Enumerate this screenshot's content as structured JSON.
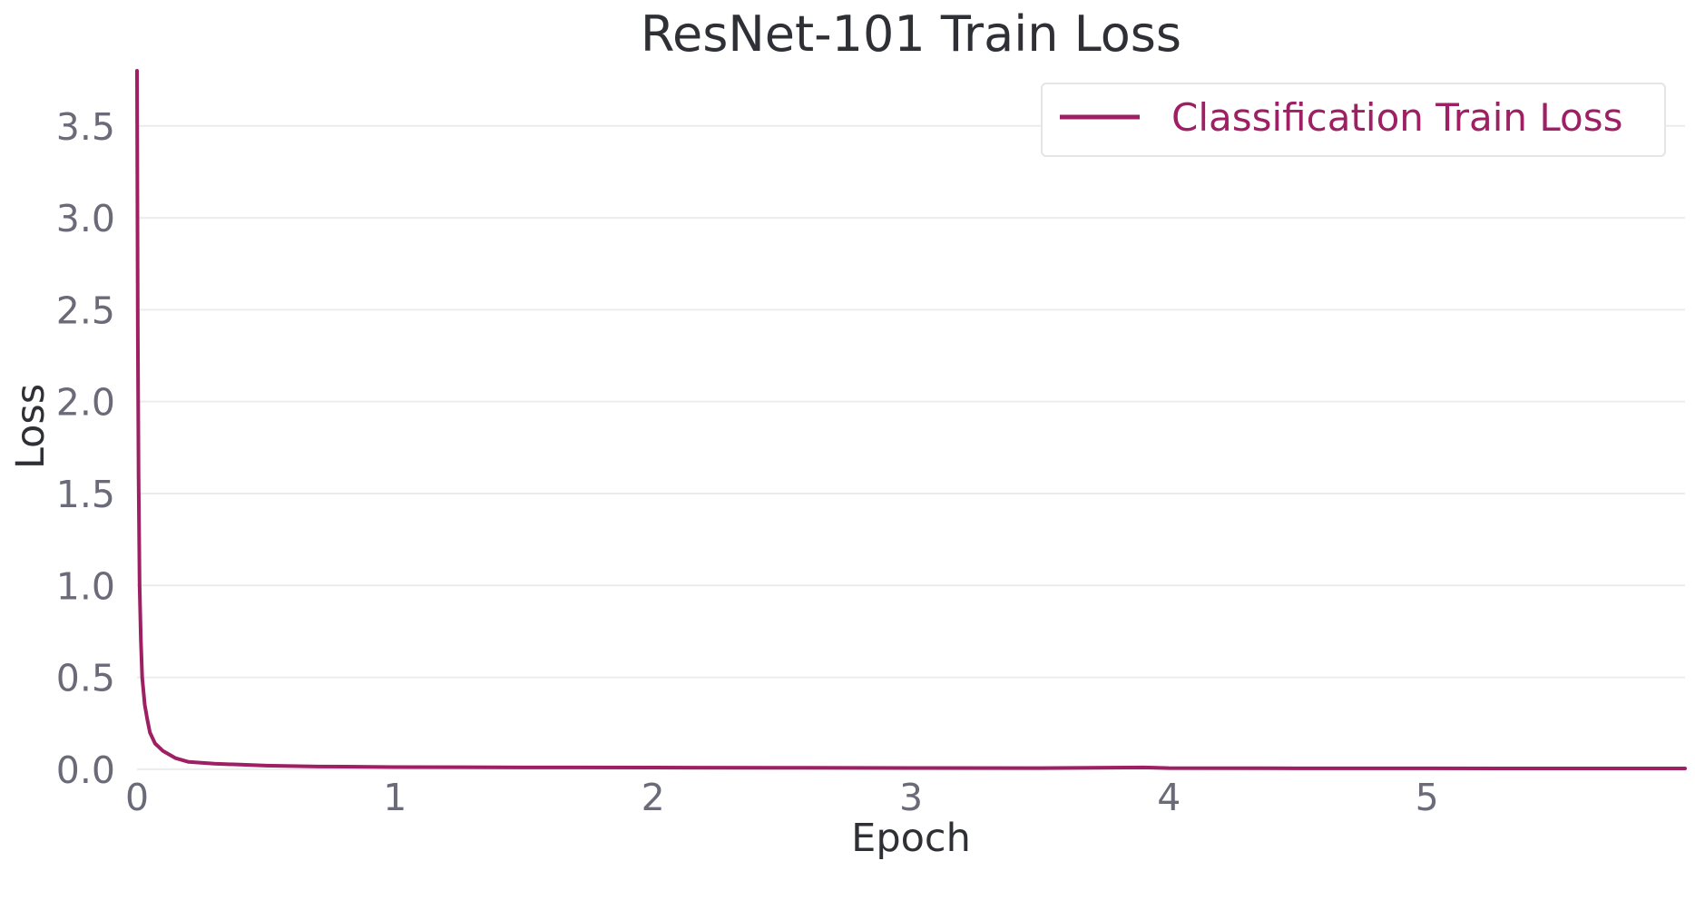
{
  "colors": {
    "series": "#9e1f63",
    "grid": "#ececec",
    "tick_text": "#6a6a78",
    "title_text": "#2f3036"
  },
  "chart_data": {
    "type": "line",
    "title": "ResNet-101 Train Loss",
    "xlabel": "Epoch",
    "ylabel": "Loss",
    "xlim": [
      0,
      6.0
    ],
    "ylim": [
      -0.05,
      3.8
    ],
    "xticks": [
      0,
      1,
      2,
      3,
      4,
      5
    ],
    "xtick_labels": [
      "0",
      "1",
      "2",
      "3",
      "4",
      "5"
    ],
    "yticks": [
      0.0,
      0.5,
      1.0,
      1.5,
      2.0,
      2.5,
      3.0,
      3.5
    ],
    "ytick_labels": [
      "0.0",
      "0.5",
      "1.0",
      "1.5",
      "2.0",
      "2.5",
      "3.0",
      "3.5"
    ],
    "grid": true,
    "legend_position": "top-right",
    "series": [
      {
        "name": "Classification Train Loss",
        "color": "#9e1f63",
        "x": [
          0,
          0.003,
          0.006,
          0.01,
          0.015,
          0.02,
          0.03,
          0.04,
          0.05,
          0.07,
          0.1,
          0.15,
          0.2,
          0.25,
          0.3,
          0.4,
          0.5,
          0.7,
          1.0,
          1.5,
          2.0,
          2.5,
          3.0,
          3.5,
          3.9,
          4.0,
          4.5,
          5.0,
          5.5,
          6.0
        ],
        "y": [
          3.8,
          2.4,
          1.6,
          1.0,
          0.7,
          0.5,
          0.35,
          0.27,
          0.2,
          0.14,
          0.1,
          0.06,
          0.04,
          0.035,
          0.03,
          0.025,
          0.02,
          0.015,
          0.012,
          0.01,
          0.009,
          0.008,
          0.007,
          0.006,
          0.01,
          0.006,
          0.005,
          0.005,
          0.004,
          0.004
        ]
      }
    ]
  }
}
